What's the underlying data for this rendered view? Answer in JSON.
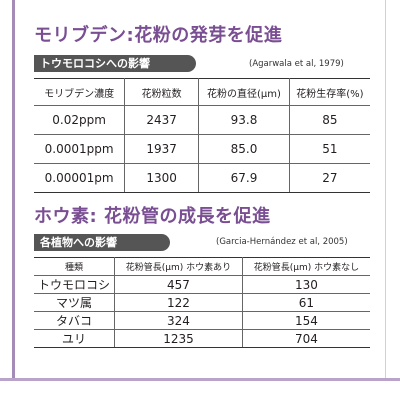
{
  "section1": {
    "title": "モリブデン:花粉の発芽を促進",
    "tag": "トウモロコシへの影響",
    "citation": "(Agarwala et al, 1979)",
    "headers": [
      "モリブデン濃度",
      "花粉粒数",
      "花粉の直径(μm)",
      "花粉生存率(%)"
    ],
    "rows": [
      [
        "0.02ppm",
        "2437",
        "93.8",
        "85"
      ],
      [
        "0.0001ppm",
        "1937",
        "85.0",
        "51"
      ],
      [
        "0.00001pm",
        "1300",
        "67.9",
        "27"
      ]
    ]
  },
  "section2": {
    "title": "ホウ素: 花粉管の成長を促進",
    "tag": "各植物への影響",
    "citation": "(Garcia-Hernández et al, 2005)",
    "headers": [
      "種類",
      "花粉管長(μm) ホウ素あり",
      "花粉管長(μm) ホウ素なし"
    ],
    "rows": [
      [
        "トウモロコシ",
        "457",
        "130"
      ],
      [
        "マツ属",
        "122",
        "61"
      ],
      [
        "タバコ",
        "324",
        "154"
      ],
      [
        "ユリ",
        "1235",
        "704"
      ]
    ]
  },
  "colors": {
    "heading": "#7a4e93",
    "tag_background": "#555555",
    "frame": "#a58bb8"
  }
}
